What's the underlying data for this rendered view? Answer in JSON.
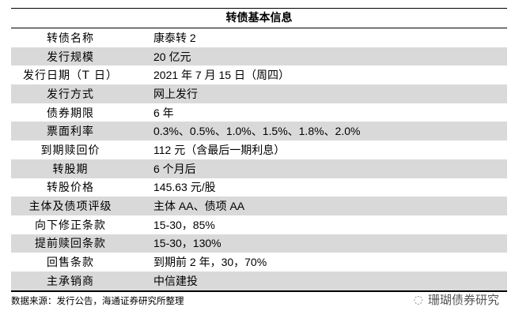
{
  "table": {
    "title": "转债基本信息",
    "rows": [
      {
        "label": "转债名称",
        "value": "康泰转 2"
      },
      {
        "label": "发行规模",
        "value": "20 亿元"
      },
      {
        "label": "发行日期（T 日）",
        "value": "2021 年 7 月 15 日（周四）"
      },
      {
        "label": "发行方式",
        "value": "网上发行"
      },
      {
        "label": "债券期限",
        "value": "6 年"
      },
      {
        "label": "票面利率",
        "value": "0.3%、0.5%、1.0%、1.5%、1.8%、2.0%"
      },
      {
        "label": "到期赎回价",
        "value": "112 元（含最后一期利息）"
      },
      {
        "label": "转股期",
        "value": "6 个月后"
      },
      {
        "label": "转股价格",
        "value": "145.63 元/股"
      },
      {
        "label": "主体及债项评级",
        "value": "主体 AA、债项 AA"
      },
      {
        "label": "向下修正条款",
        "value": "15-30，85%"
      },
      {
        "label": "提前赎回条款",
        "value": "15-30，130%"
      },
      {
        "label": "回售条款",
        "value": "到期前 2 年，30，70%"
      },
      {
        "label": "主承销商",
        "value": "中信建投"
      }
    ]
  },
  "footer": {
    "source": "数据来源：发行公告，海通证券研究所整理"
  },
  "watermark": {
    "text": "珊瑚债券研究",
    "icon": "wechat-icon"
  },
  "colors": {
    "stripe": "#d9d9d9"
  }
}
